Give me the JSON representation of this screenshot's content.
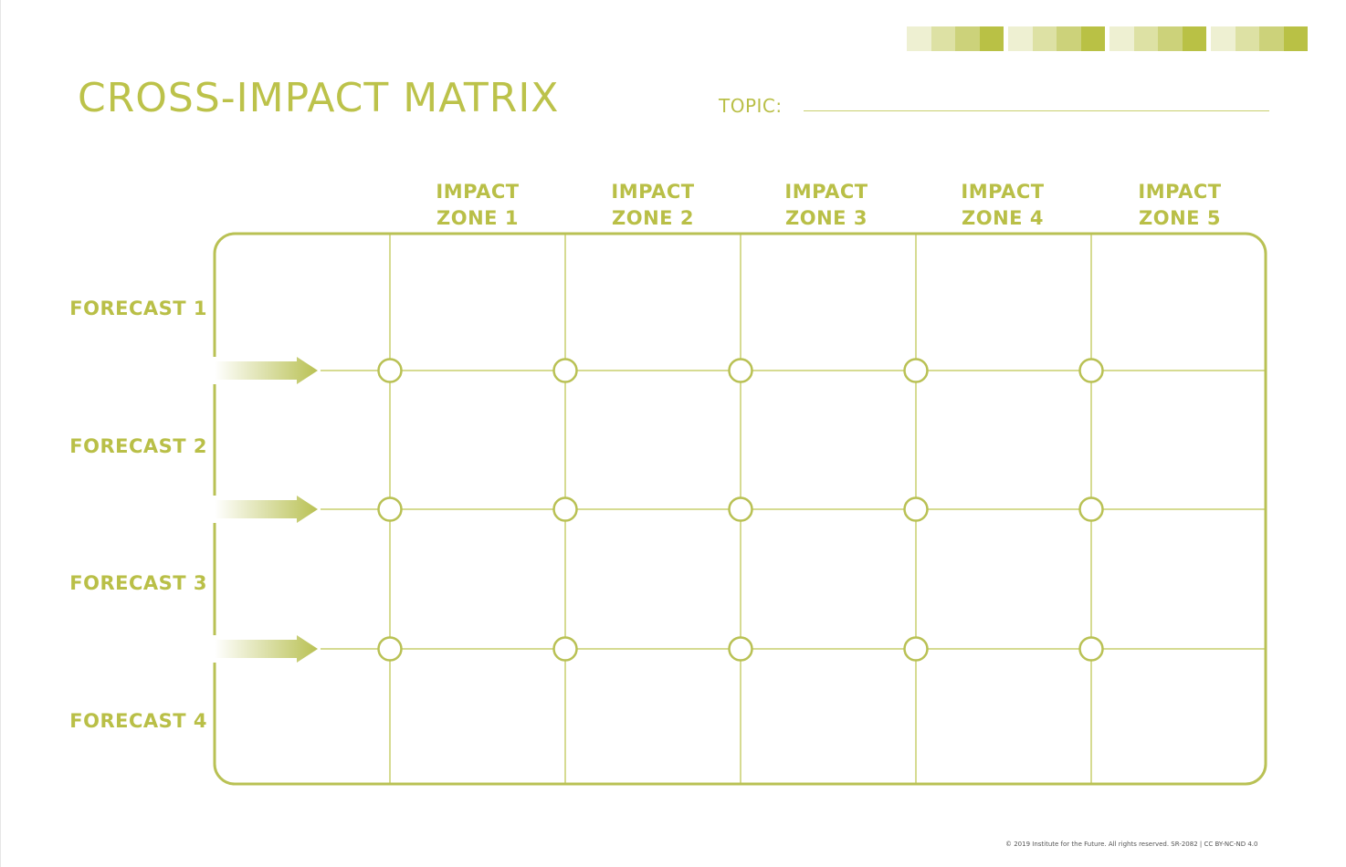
{
  "title": "CROSS-IMPACT MATRIX",
  "topic": {
    "label": "TOPIC:",
    "value": ""
  },
  "columns": [
    {
      "line1": "IMPACT",
      "line2": "ZONE 1"
    },
    {
      "line1": "IMPACT",
      "line2": "ZONE 2"
    },
    {
      "line1": "IMPACT",
      "line2": "ZONE 3"
    },
    {
      "line1": "IMPACT",
      "line2": "ZONE 4"
    },
    {
      "line1": "IMPACT",
      "line2": "ZONE 5"
    }
  ],
  "rows": [
    "FORECAST 1",
    "FORECAST 2",
    "FORECAST 3",
    "FORECAST 4"
  ],
  "footer": "© 2019 Institute for the Future. All rights reserved. SR-2082 | CC BY-NC-ND 4.0",
  "colors": {
    "accent": "#bcc24a",
    "line": "#c9cf6e",
    "border": "#b9c154",
    "swatches": [
      "#eef0d2",
      "#dde1a4",
      "#ccd27a",
      "#b9c145"
    ]
  }
}
